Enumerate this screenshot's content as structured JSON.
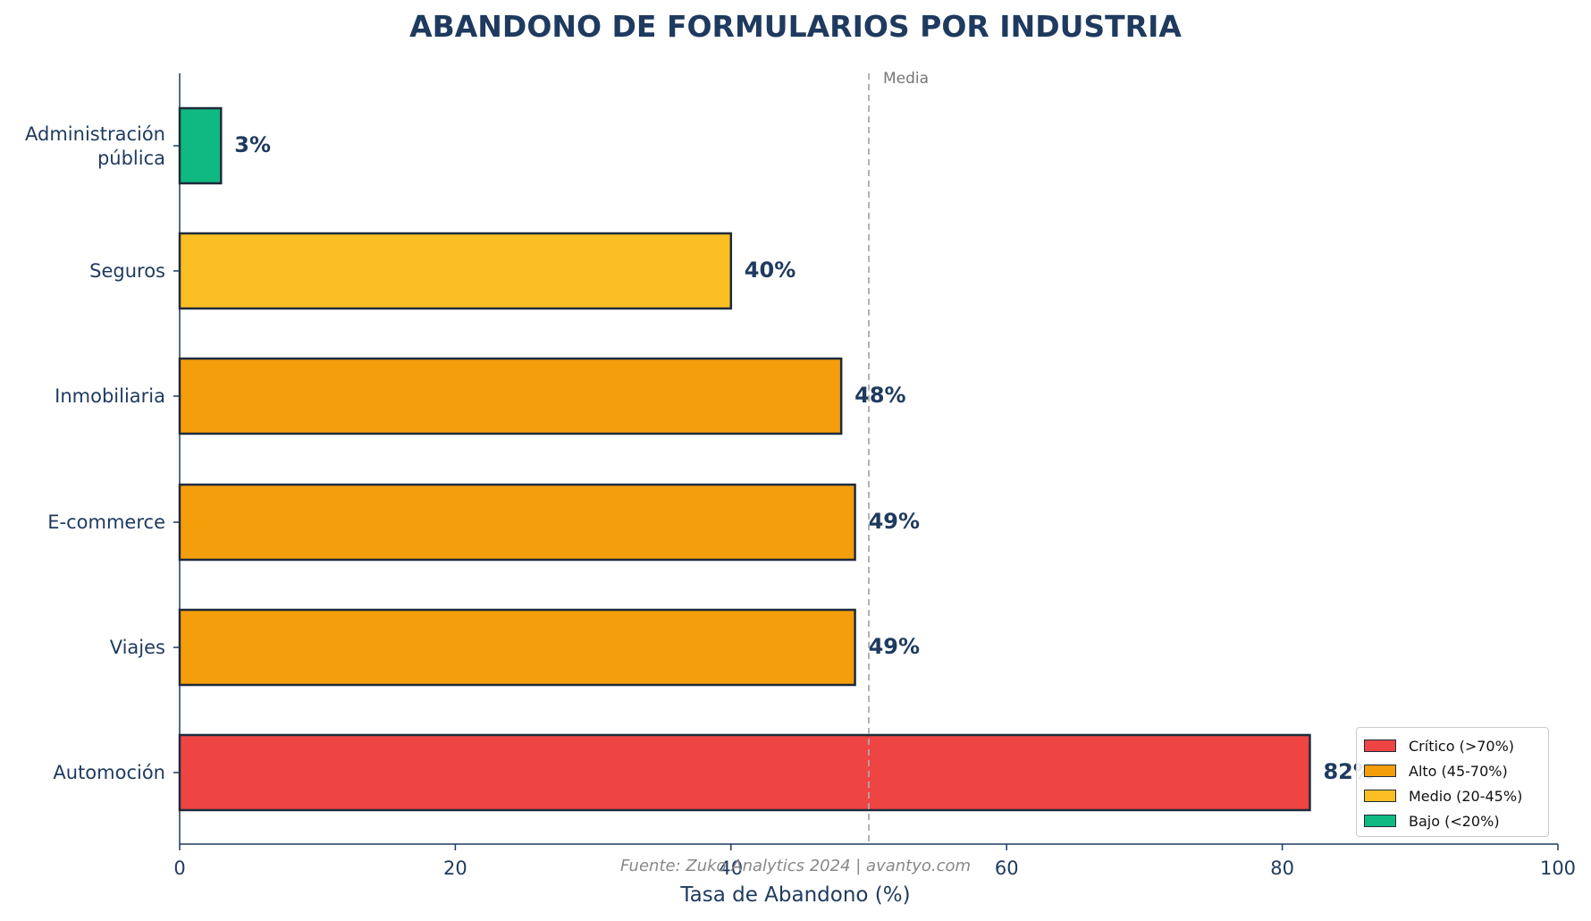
{
  "chart_data": {
    "type": "bar",
    "orientation": "horizontal",
    "title": "ABANDONO DE FORMULARIOS POR INDUSTRIA",
    "xlabel": "Tasa de Abandono (%)",
    "ylabel": "",
    "xlim": [
      0,
      100
    ],
    "xticks": [
      "0",
      "20",
      "40",
      "60",
      "80",
      "100"
    ],
    "grid": false,
    "categories": [
      "Administración pública",
      "Seguros",
      "Inmobiliaria",
      "E-commerce",
      "Viajes",
      "Automoción"
    ],
    "values": [
      3,
      40,
      48,
      49,
      49,
      82
    ],
    "value_labels": [
      "3%",
      "40%",
      "48%",
      "49%",
      "49%",
      "82%"
    ],
    "bar_colors": [
      "#10b981",
      "#fbbf24",
      "#f59e0b",
      "#f59e0b",
      "#f59e0b",
      "#ef4444"
    ],
    "reference_line": {
      "label": "Media",
      "value": 50
    },
    "legend": {
      "position": "bottom-right",
      "entries": [
        {
          "label": "Crítico (>70%)",
          "color": "#ef4444"
        },
        {
          "label": "Alto (45-70%)",
          "color": "#f59e0b"
        },
        {
          "label": "Medio (20-45%)",
          "color": "#fbbf24"
        },
        {
          "label": "Bajo (<20%)",
          "color": "#10b981"
        }
      ]
    },
    "source": "Fuente: Zuko Analytics 2024 | avantyo.com"
  },
  "colors": {
    "text": "#1e3a5f",
    "bar_edge": "#1e2b3c",
    "axis": "#1e3a5f",
    "reference_line": "#aaaaaa"
  }
}
